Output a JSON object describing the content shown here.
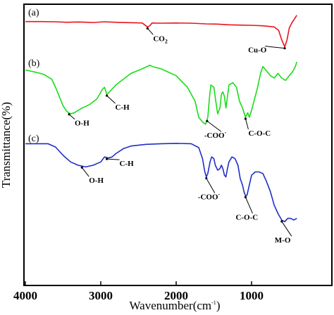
{
  "chart_data": {
    "type": "line",
    "title": "",
    "xlabel": "Wavenumber(cm",
    "xlabel_sup": "-1",
    "xlabel_close": ")",
    "ylabel": "Transmittance(%)",
    "xlim": [
      4000,
      400
    ],
    "x_reversed": true,
    "ylim": [
      0,
      1
    ],
    "y_ticks_shown": false,
    "grid": false,
    "legend": "none",
    "x_ticks": [
      "4000",
      "3000",
      "2000",
      "1000"
    ],
    "x_tick_values": [
      4000,
      3000,
      2000,
      1000
    ],
    "series": [
      {
        "name": "(a)",
        "color": "#e8141c",
        "points": [
          [
            4000,
            0.958
          ],
          [
            3800,
            0.958
          ],
          [
            3600,
            0.957
          ],
          [
            3450,
            0.955
          ],
          [
            3300,
            0.956
          ],
          [
            3100,
            0.954
          ],
          [
            2950,
            0.957
          ],
          [
            2800,
            0.955
          ],
          [
            2600,
            0.953
          ],
          [
            2450,
            0.952
          ],
          [
            2380,
            0.935
          ],
          [
            2350,
            0.94
          ],
          [
            2320,
            0.952
          ],
          [
            2200,
            0.951
          ],
          [
            2000,
            0.952
          ],
          [
            1800,
            0.951
          ],
          [
            1600,
            0.948
          ],
          [
            1450,
            0.947
          ],
          [
            1300,
            0.944
          ],
          [
            1150,
            0.943
          ],
          [
            1000,
            0.942
          ],
          [
            850,
            0.94
          ],
          [
            700,
            0.935
          ],
          [
            640,
            0.92
          ],
          [
            600,
            0.88
          ],
          [
            560,
            0.85
          ],
          [
            530,
            0.88
          ],
          [
            500,
            0.93
          ],
          [
            470,
            0.95
          ],
          [
            430,
            0.97
          ],
          [
            400,
            0.985
          ]
        ]
      },
      {
        "name": "(b)",
        "color": "#1adc1a",
        "points": [
          [
            4000,
            0.805
          ],
          [
            3900,
            0.798
          ],
          [
            3800,
            0.79
          ],
          [
            3750,
            0.785
          ],
          [
            3700,
            0.775
          ],
          [
            3650,
            0.765
          ],
          [
            3600,
            0.73
          ],
          [
            3550,
            0.69
          ],
          [
            3500,
            0.65
          ],
          [
            3450,
            0.625
          ],
          [
            3400,
            0.615
          ],
          [
            3350,
            0.62
          ],
          [
            3250,
            0.64
          ],
          [
            3150,
            0.655
          ],
          [
            3050,
            0.68
          ],
          [
            2980,
            0.72
          ],
          [
            2950,
            0.73
          ],
          [
            2920,
            0.7
          ],
          [
            2900,
            0.705
          ],
          [
            2800,
            0.74
          ],
          [
            2600,
            0.79
          ],
          [
            2450,
            0.81
          ],
          [
            2350,
            0.825
          ],
          [
            2300,
            0.818
          ],
          [
            2200,
            0.81
          ],
          [
            2000,
            0.78
          ],
          [
            1850,
            0.73
          ],
          [
            1750,
            0.67
          ],
          [
            1700,
            0.6
          ],
          [
            1650,
            0.58
          ],
          [
            1610,
            0.57
          ],
          [
            1580,
            0.6
          ],
          [
            1560,
            0.68
          ],
          [
            1540,
            0.74
          ],
          [
            1500,
            0.73
          ],
          [
            1470,
            0.66
          ],
          [
            1450,
            0.615
          ],
          [
            1420,
            0.64
          ],
          [
            1400,
            0.7
          ],
          [
            1380,
            0.71
          ],
          [
            1360,
            0.69
          ],
          [
            1340,
            0.64
          ],
          [
            1320,
            0.69
          ],
          [
            1300,
            0.74
          ],
          [
            1250,
            0.75
          ],
          [
            1200,
            0.73
          ],
          [
            1160,
            0.67
          ],
          [
            1120,
            0.64
          ],
          [
            1080,
            0.6
          ],
          [
            1050,
            0.62
          ],
          [
            1030,
            0.6
          ],
          [
            1000,
            0.63
          ],
          [
            960,
            0.68
          ],
          [
            920,
            0.73
          ],
          [
            880,
            0.79
          ],
          [
            850,
            0.82
          ],
          [
            800,
            0.8
          ],
          [
            750,
            0.78
          ],
          [
            700,
            0.77
          ],
          [
            650,
            0.79
          ],
          [
            600,
            0.77
          ],
          [
            550,
            0.76
          ],
          [
            500,
            0.78
          ],
          [
            450,
            0.8
          ],
          [
            420,
            0.82
          ],
          [
            400,
            0.84
          ]
        ]
      },
      {
        "name": "(c)",
        "color": "#1e2ec8",
        "points": [
          [
            4000,
            0.565
          ],
          [
            3900,
            0.565
          ],
          [
            3800,
            0.565
          ],
          [
            3700,
            0.565
          ],
          [
            3600,
            0.555
          ],
          [
            3500,
            0.53
          ],
          [
            3400,
            0.51
          ],
          [
            3300,
            0.5
          ],
          [
            3200,
            0.495
          ],
          [
            3100,
            0.5
          ],
          [
            3000,
            0.51
          ],
          [
            2950,
            0.525
          ],
          [
            2900,
            0.522
          ],
          [
            2850,
            0.525
          ],
          [
            2800,
            0.535
          ],
          [
            2700,
            0.55
          ],
          [
            2600,
            0.558
          ],
          [
            2400,
            0.563
          ],
          [
            2200,
            0.565
          ],
          [
            2000,
            0.566
          ],
          [
            1800,
            0.565
          ],
          [
            1700,
            0.553
          ],
          [
            1650,
            0.52
          ],
          [
            1620,
            0.48
          ],
          [
            1600,
            0.465
          ],
          [
            1580,
            0.475
          ],
          [
            1550,
            0.51
          ],
          [
            1530,
            0.525
          ],
          [
            1500,
            0.52
          ],
          [
            1480,
            0.5
          ],
          [
            1450,
            0.485
          ],
          [
            1420,
            0.49
          ],
          [
            1400,
            0.5
          ],
          [
            1380,
            0.49
          ],
          [
            1360,
            0.47
          ],
          [
            1340,
            0.465
          ],
          [
            1320,
            0.49
          ],
          [
            1300,
            0.51
          ],
          [
            1260,
            0.525
          ],
          [
            1220,
            0.52
          ],
          [
            1180,
            0.5
          ],
          [
            1150,
            0.46
          ],
          [
            1120,
            0.44
          ],
          [
            1100,
            0.42
          ],
          [
            1080,
            0.408
          ],
          [
            1060,
            0.41
          ],
          [
            1040,
            0.43
          ],
          [
            1020,
            0.45
          ],
          [
            1000,
            0.47
          ],
          [
            950,
            0.48
          ],
          [
            900,
            0.48
          ],
          [
            850,
            0.475
          ],
          [
            800,
            0.45
          ],
          [
            750,
            0.42
          ],
          [
            700,
            0.38
          ],
          [
            650,
            0.355
          ],
          [
            600,
            0.335
          ],
          [
            560,
            0.33
          ],
          [
            520,
            0.34
          ],
          [
            480,
            0.34
          ],
          [
            440,
            0.335
          ],
          [
            400,
            0.34
          ]
        ]
      }
    ],
    "annotations": [
      {
        "series": "(a)",
        "label": "CO",
        "sub": "2",
        "x": 2380
      },
      {
        "series": "(a)",
        "label": "Cu-O",
        "sub": "",
        "x": 560
      },
      {
        "series": "(b)",
        "label": "O-H",
        "sub": "",
        "x": 3420
      },
      {
        "series": "(b)",
        "label": "C-H",
        "sub": "",
        "x": 2920
      },
      {
        "series": "(b)",
        "label": "-COO",
        "sup": "-",
        "x": 1590
      },
      {
        "series": "(b)",
        "label": "C-O-C",
        "sub": "",
        "x": 1080
      },
      {
        "series": "(c)",
        "label": "O-H",
        "sub": "",
        "x": 3250
      },
      {
        "series": "(c)",
        "label": "C-H",
        "sub": "",
        "x": 2920
      },
      {
        "series": "(c)",
        "label": "-COO",
        "sup": "-",
        "x": 1600
      },
      {
        "series": "(c)",
        "label": "C-O-C",
        "sub": "",
        "x": 1080
      },
      {
        "series": "(c)",
        "label": "M-O",
        "sub": "",
        "x": 600
      }
    ]
  }
}
